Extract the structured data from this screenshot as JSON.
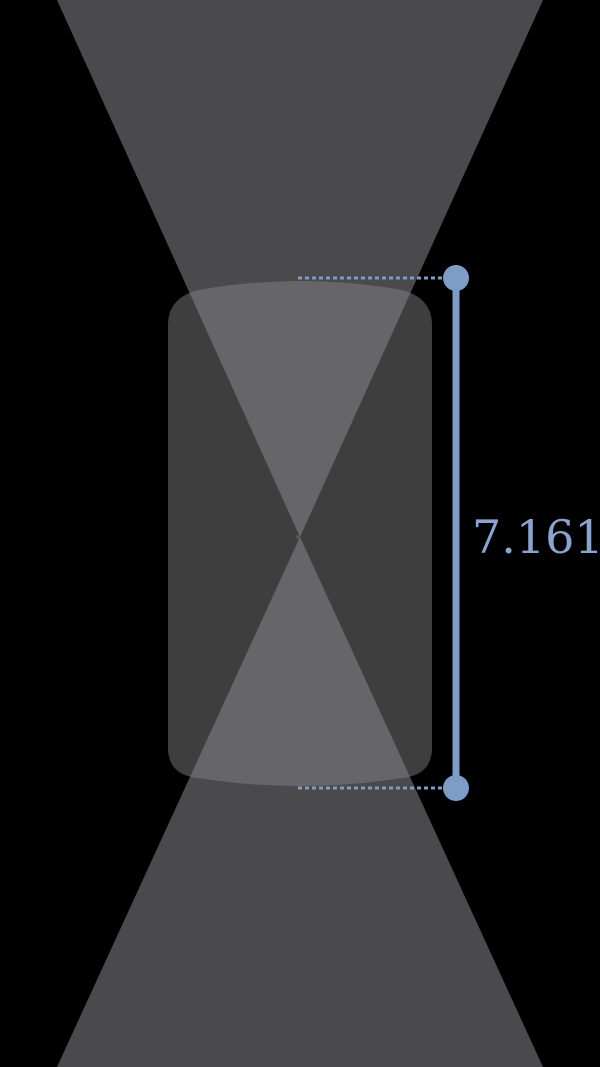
{
  "measurement": {
    "value_label": "7.161",
    "value": 7.161
  },
  "colors": {
    "background": "#000000",
    "cone_fill": "#4a494c",
    "overlap_fill": "#6b6a6c",
    "lens_fill": "#5a595b",
    "measure_accent": "#7e9cc8",
    "label_color": "#8aa3cf"
  },
  "elements": {
    "upper_cone": "upper-light-cone",
    "lower_cone": "lower-light-cone",
    "lens": "rounded-lens-body",
    "focal_point": "focal-point"
  }
}
